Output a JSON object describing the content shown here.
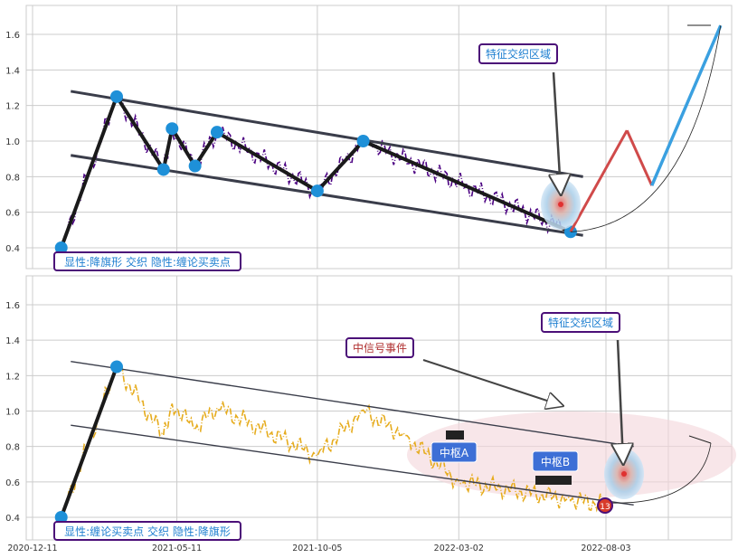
{
  "colors": {
    "panel_bg": "#ffffff",
    "grid": "#cccccc",
    "channel": "#3a3d4a",
    "price_top": "#4b0082",
    "price_bottom": "#e6ac1e",
    "pivot": "#1e90d8",
    "zigzag": "#1a1a1a",
    "label_border": "#4b0f78",
    "label_text": "#1e7fd0",
    "zone_fill": "#f4d6da",
    "red_leg": "#d04a4a",
    "blue_leg": "#3aa0e0",
    "box_fill": "#3d6fd6"
  },
  "chart_data": [
    {
      "type": "line",
      "panel": "top",
      "ylim": [
        0.3,
        1.75
      ],
      "yticks": [
        0.4,
        0.6,
        0.8,
        1.0,
        1.2,
        1.4,
        1.6
      ],
      "ytick_labels": [
        "0.4",
        "0.6",
        "0.8",
        "1.0",
        "1.2",
        "1.4",
        "1.6"
      ],
      "annotations": {
        "bottom_label": "显性:降旗形 交织 隐性:缠论买卖点",
        "zone_label": "特征交织区域"
      },
      "pivots": [
        {
          "date": "2021-01-10",
          "value": 0.4
        },
        {
          "date": "2021-03-09",
          "value": 1.25
        },
        {
          "date": "2021-04-27",
          "value": 0.84
        },
        {
          "date": "2021-05-06",
          "value": 1.07
        },
        {
          "date": "2021-05-30",
          "value": 0.86
        },
        {
          "date": "2021-06-22",
          "value": 1.05
        },
        {
          "date": "2021-10-05",
          "value": 0.72
        },
        {
          "date": "2021-11-22",
          "value": 1.0
        },
        {
          "date": "2022-06-27",
          "value": 0.49
        }
      ],
      "channel_upper": [
        {
          "date": "2021-01-20",
          "value": 1.28
        },
        {
          "date": "2022-07-10",
          "value": 0.8
        }
      ],
      "channel_lower": [
        {
          "date": "2021-01-20",
          "value": 0.92
        },
        {
          "date": "2022-07-10",
          "value": 0.47
        }
      ],
      "projection": [
        {
          "date": "2022-06-27",
          "value": 0.49
        },
        {
          "date": "2022-08-25",
          "value": 1.06
        },
        {
          "date": "2022-09-20",
          "value": 0.75
        },
        {
          "date": "2022-12-01",
          "value": 1.65
        }
      ]
    },
    {
      "type": "line",
      "panel": "bottom",
      "ylim": [
        0.3,
        1.75
      ],
      "yticks": [
        0.4,
        0.6,
        0.8,
        1.0,
        1.2,
        1.4,
        1.6
      ],
      "ytick_labels": [
        "0.4",
        "0.6",
        "0.8",
        "1.0",
        "1.2",
        "1.4",
        "1.6"
      ],
      "xtick_labels": [
        "2020-12-11",
        "2021-05-11",
        "2021-10-05",
        "2022-03-02",
        "2022-08-03"
      ],
      "xticks": [
        "2020-12-11",
        "2021-05-11",
        "2021-10-05",
        "2022-03-02",
        "2022-08-03"
      ],
      "annotations": {
        "bottom_label": "显性:缠论买卖点 交织 隐性:降旗形",
        "zone_label": "特征交织区域",
        "signal_label": "中信号事件",
        "pivot_a": "中枢A",
        "pivot_b": "中枢B",
        "marker_number": "13"
      },
      "pivots": [
        {
          "date": "2021-01-10",
          "value": 0.4
        },
        {
          "date": "2021-03-09",
          "value": 1.25
        }
      ],
      "channel_upper": [
        {
          "date": "2021-01-20",
          "value": 1.28
        },
        {
          "date": "2022-09-01",
          "value": 0.8
        }
      ],
      "channel_lower": [
        {
          "date": "2021-01-20",
          "value": 0.92
        },
        {
          "date": "2022-09-01",
          "value": 0.47
        }
      ],
      "signal_point": {
        "date": "2022-08-03",
        "value": 0.47
      }
    }
  ]
}
